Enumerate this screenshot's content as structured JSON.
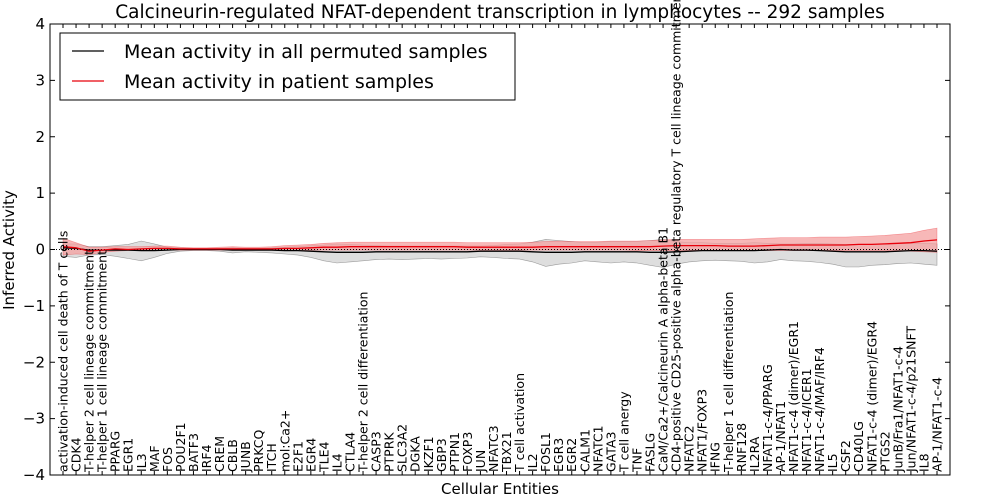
{
  "chart_data": {
    "type": "line",
    "title": "Calcineurin-regulated NFAT-dependent transcription in lymphocytes -- 292 samples",
    "xlabel": "Cellular Entities",
    "ylabel": "Inferred Activity",
    "ylim": [
      -4,
      4
    ],
    "yticks": [
      "4",
      "3",
      "2",
      "1",
      "0",
      "−1",
      "−2",
      "−3",
      "−4"
    ],
    "grid": false,
    "legend_position": "top-left",
    "categories": [
      "activation-induced cell death of T cells",
      "CDK4",
      "T-helper 2 cell lineage commitment",
      "T-helper 1 cell lineage commitment",
      "PPARG",
      "EGR1",
      "IL3",
      "MAF",
      "FOS",
      "POU2F1",
      "BATF3",
      "IRF4",
      "CREM",
      "CBLB",
      "JUNB",
      "PRKCQ",
      "ITCH",
      "mol:Ca2+",
      "E2F1",
      "EGR4",
      "TLE4",
      "IL4",
      "CTLA4",
      "T-helper 2 cell differentiation",
      "CASP3",
      "PTPRK",
      "SLC3A2",
      "DGKA",
      "IKZF1",
      "GBP3",
      "PTPN1",
      "FOXP3",
      "JUN",
      "NFATC3",
      "TBX21",
      "T cell activation",
      "IL2",
      "FOSL1",
      "EGR3",
      "EGR2",
      "CALM1",
      "NFATC1",
      "GATA3",
      "T cell anergy",
      "TNF",
      "FASLG",
      "CaM/Ca2+/Calcineurin A alpha-beta B1",
      "CD4-positive CD25-positive alpha-beta regulatory T cell lineage commitment",
      "NFATC2",
      "NFAT1/FOXP3",
      "IFNG",
      "T-helper 1 cell differentiation",
      "RNF128",
      "IL2RA",
      "NFAT1-c-4/PPARG",
      "AP-1/NFAT1",
      "NFAT1-c-4 (dimer)/EGR1",
      "NFAT1-c-4/ICER1",
      "NFAT1-c-4/MAF/IRF4",
      "IL5",
      "CSF2",
      "CD40LG",
      "NFAT1-c-4 (dimer)/EGR4",
      "PTGS2",
      "JunB/Fra1/NFAT1-c-4",
      "Jun/NFAT1-c-4/p21SNFT",
      "IL8",
      "AP-1/NFAT1-c-4"
    ],
    "series": [
      {
        "name": "Mean activity in all permuted samples",
        "color": "#000000",
        "band_color": "#c8c8c8",
        "values": [
          0.03,
          0.02,
          -0.01,
          -0.01,
          -0.01,
          -0.01,
          -0.02,
          -0.02,
          -0.01,
          0.0,
          0.0,
          0.0,
          0.0,
          -0.01,
          -0.01,
          -0.01,
          -0.01,
          -0.02,
          -0.02,
          -0.03,
          -0.04,
          -0.05,
          -0.05,
          -0.05,
          -0.04,
          -0.04,
          -0.04,
          -0.04,
          -0.04,
          -0.04,
          -0.04,
          -0.04,
          -0.03,
          -0.03,
          -0.03,
          -0.03,
          -0.04,
          -0.05,
          -0.05,
          -0.05,
          -0.04,
          -0.04,
          -0.04,
          -0.04,
          -0.04,
          -0.05,
          -0.05,
          -0.04,
          -0.03,
          -0.02,
          -0.02,
          -0.02,
          -0.02,
          -0.02,
          -0.01,
          0.0,
          -0.01,
          -0.01,
          -0.02,
          -0.03,
          -0.04,
          -0.04,
          -0.04,
          -0.04,
          -0.03,
          -0.02,
          -0.02,
          -0.03
        ],
        "lower": [
          -0.12,
          -0.14,
          -0.1,
          -0.09,
          -0.12,
          -0.16,
          -0.2,
          -0.14,
          -0.07,
          -0.03,
          -0.02,
          -0.02,
          -0.03,
          -0.06,
          -0.04,
          -0.05,
          -0.06,
          -0.08,
          -0.1,
          -0.14,
          -0.2,
          -0.24,
          -0.22,
          -0.2,
          -0.18,
          -0.17,
          -0.18,
          -0.17,
          -0.16,
          -0.17,
          -0.16,
          -0.15,
          -0.13,
          -0.14,
          -0.16,
          -0.17,
          -0.22,
          -0.3,
          -0.26,
          -0.24,
          -0.2,
          -0.22,
          -0.24,
          -0.22,
          -0.24,
          -0.28,
          -0.32,
          -0.26,
          -0.22,
          -0.2,
          -0.19,
          -0.2,
          -0.21,
          -0.24,
          -0.22,
          -0.18,
          -0.2,
          -0.21,
          -0.23,
          -0.26,
          -0.31,
          -0.31,
          -0.28,
          -0.27,
          -0.25,
          -0.24,
          -0.26,
          -0.28
        ],
        "upper": [
          0.1,
          0.1,
          0.05,
          0.05,
          0.07,
          0.09,
          0.15,
          0.1,
          0.04,
          0.03,
          0.02,
          0.02,
          0.02,
          0.03,
          0.02,
          0.02,
          0.03,
          0.04,
          0.05,
          0.07,
          0.08,
          0.1,
          0.09,
          0.08,
          0.07,
          0.06,
          0.06,
          0.06,
          0.06,
          0.06,
          0.06,
          0.06,
          0.06,
          0.07,
          0.09,
          0.1,
          0.13,
          0.18,
          0.16,
          0.14,
          0.12,
          0.13,
          0.14,
          0.14,
          0.14,
          0.16,
          0.18,
          0.14,
          0.12,
          0.12,
          0.11,
          0.11,
          0.11,
          0.12,
          0.11,
          0.1,
          0.1,
          0.11,
          0.11,
          0.1,
          0.09,
          0.09,
          0.09,
          0.1,
          0.11,
          0.11,
          0.11,
          0.1
        ]
      },
      {
        "name": "Mean activity in patient samples",
        "color": "#e8000b",
        "band_color": "#f4a0a0",
        "values": [
          0.05,
          0.03,
          -0.03,
          -0.01,
          0.01,
          0.0,
          0.01,
          0.02,
          0.02,
          0.01,
          0.01,
          0.01,
          0.01,
          0.01,
          0.01,
          0.01,
          0.01,
          0.02,
          0.02,
          0.03,
          0.04,
          0.04,
          0.05,
          0.05,
          0.05,
          0.05,
          0.05,
          0.05,
          0.05,
          0.05,
          0.05,
          0.04,
          0.04,
          0.04,
          0.04,
          0.04,
          0.04,
          0.05,
          0.05,
          0.05,
          0.05,
          0.05,
          0.05,
          0.05,
          0.05,
          0.05,
          0.06,
          0.07,
          0.07,
          0.07,
          0.07,
          0.06,
          0.06,
          0.06,
          0.07,
          0.08,
          0.08,
          0.08,
          0.08,
          0.08,
          0.08,
          0.09,
          0.09,
          0.1,
          0.11,
          0.12,
          0.15,
          0.17
        ],
        "lower": [
          -0.1,
          -0.08,
          -0.09,
          -0.05,
          -0.03,
          -0.02,
          -0.01,
          -0.01,
          -0.01,
          -0.01,
          -0.01,
          -0.01,
          -0.01,
          -0.01,
          -0.01,
          -0.01,
          -0.01,
          -0.01,
          -0.01,
          -0.01,
          -0.01,
          -0.01,
          -0.01,
          -0.01,
          -0.01,
          -0.01,
          -0.01,
          -0.01,
          -0.01,
          -0.01,
          -0.01,
          -0.01,
          -0.01,
          -0.01,
          -0.01,
          -0.01,
          -0.01,
          -0.01,
          -0.01,
          -0.01,
          -0.01,
          -0.01,
          -0.01,
          -0.01,
          -0.02,
          -0.02,
          -0.02,
          -0.02,
          -0.02,
          -0.02,
          -0.02,
          -0.02,
          -0.02,
          -0.02,
          -0.02,
          -0.02,
          -0.02,
          -0.02,
          -0.02,
          -0.02,
          -0.02,
          -0.02,
          -0.02,
          -0.02,
          -0.02,
          -0.03,
          -0.04,
          -0.05
        ],
        "upper": [
          0.2,
          0.12,
          0.04,
          0.04,
          0.05,
          0.05,
          0.05,
          0.06,
          0.06,
          0.04,
          0.03,
          0.03,
          0.04,
          0.05,
          0.04,
          0.04,
          0.05,
          0.07,
          0.08,
          0.09,
          0.11,
          0.12,
          0.13,
          0.13,
          0.13,
          0.13,
          0.13,
          0.13,
          0.13,
          0.13,
          0.13,
          0.12,
          0.12,
          0.12,
          0.12,
          0.12,
          0.13,
          0.14,
          0.15,
          0.14,
          0.14,
          0.14,
          0.15,
          0.15,
          0.15,
          0.16,
          0.17,
          0.18,
          0.18,
          0.18,
          0.18,
          0.18,
          0.18,
          0.19,
          0.2,
          0.21,
          0.21,
          0.21,
          0.22,
          0.22,
          0.22,
          0.23,
          0.24,
          0.25,
          0.27,
          0.29,
          0.34,
          0.38
        ]
      }
    ]
  }
}
